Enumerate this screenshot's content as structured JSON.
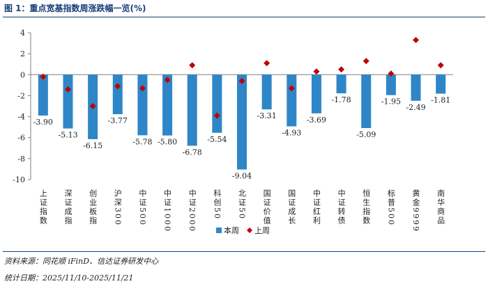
{
  "figure": {
    "title": "图 1：重点宽基指数周涨跌幅一览(%)",
    "source": "资料来源：同花顺 iFinD、信达证券研发中心",
    "date_range": "统计日期：2025/11/10-2025/11/21"
  },
  "chart_data": {
    "type": "bar",
    "title": "重点宽基指数周涨跌幅一览(%)",
    "categories": [
      "上证指数",
      "深证成指",
      "创业板指",
      "沪深300",
      "中证500",
      "中证1000",
      "中证2000",
      "科创50",
      "北证50",
      "国证价值",
      "国证成长",
      "中证红利",
      "中证转债",
      "恒生指数",
      "标普500",
      "黄金9999",
      "南华商品"
    ],
    "series": [
      {
        "name": "本周",
        "type": "bar",
        "color": "#2e86c8",
        "values": [
          -3.9,
          -5.13,
          -6.15,
          -3.77,
          -5.78,
          -5.8,
          -6.78,
          -5.54,
          -9.04,
          -3.31,
          -4.93,
          -3.69,
          -1.78,
          -5.09,
          -1.95,
          -2.49,
          -1.81
        ],
        "labels": [
          "-3.90",
          "-5.13",
          "-6.15",
          "-3.77",
          "-5.78",
          "-5.80",
          "-6.78",
          "-5.54",
          "-9.04",
          "-3.31",
          "-4.93",
          "-3.69",
          "-1.78",
          "-5.09",
          "-1.95",
          "-2.49",
          "-1.81"
        ]
      },
      {
        "name": "上周",
        "type": "scatter",
        "marker": "diamond",
        "color": "#c00000",
        "values": [
          -0.2,
          -1.4,
          -3.0,
          -1.1,
          -1.3,
          -0.5,
          0.9,
          -3.9,
          -0.6,
          1.1,
          -1.3,
          0.3,
          0.5,
          1.3,
          0.1,
          3.3,
          0.9
        ]
      }
    ],
    "ylim": [
      -10,
      4
    ],
    "yticks": [
      "4",
      "2",
      "0",
      "-2",
      "-4",
      "-6",
      "-8",
      "-10"
    ],
    "ytick_values": [
      4,
      2,
      0,
      -2,
      -4,
      -6,
      -8,
      -10
    ],
    "legend": [
      "本周",
      "上周"
    ],
    "legend_position": "bottom-center",
    "grid": false
  }
}
